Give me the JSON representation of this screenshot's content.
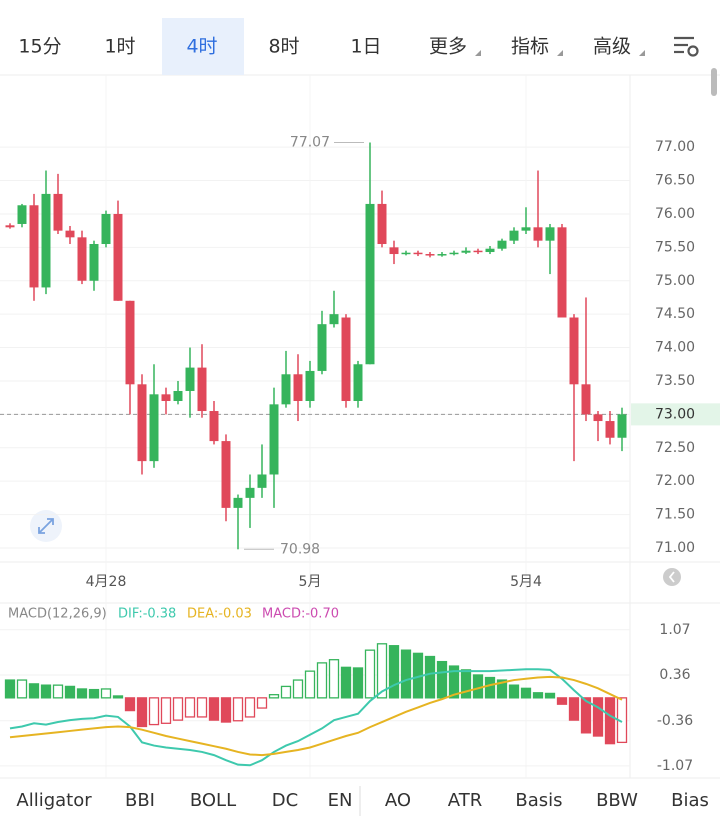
{
  "tabs": [
    "15分",
    "1时",
    "4时",
    "8时",
    "1日",
    "更多",
    "指标",
    "高级"
  ],
  "active_tab": 2,
  "indicator_tabs": [
    "Alligator",
    "BBI",
    "BOLL",
    "DC",
    "EN",
    "AO",
    "ATR",
    "Basis",
    "BBW",
    "Bias"
  ],
  "chart_data": [
    {
      "type": "candlestick",
      "up_color": "#36b45c",
      "down_color": "#e0485a",
      "categories": [
        null,
        null,
        null,
        null,
        null,
        null,
        null,
        null,
        "4月28",
        null,
        null,
        null,
        null,
        null,
        null,
        null,
        null,
        null,
        null,
        null,
        null,
        null,
        null,
        null,
        null,
        "5月",
        null,
        null,
        null,
        null,
        null,
        null,
        null,
        null,
        null,
        null,
        null,
        null,
        null,
        null,
        null,
        null,
        null,
        "5月4",
        null,
        null,
        null,
        null,
        null,
        null,
        null,
        null
      ],
      "open": [
        75.83,
        75.85,
        76.13,
        74.9,
        76.3,
        75.75,
        75.65,
        75.0,
        75.55,
        76.0,
        74.7,
        73.45,
        72.3,
        73.3,
        73.2,
        73.35,
        73.7,
        73.05,
        72.6,
        71.6,
        71.75,
        71.9,
        72.1,
        73.15,
        73.6,
        73.2,
        73.65,
        74.35,
        74.45,
        73.2,
        73.75,
        76.15,
        75.5,
        75.4,
        75.42,
        75.4,
        75.38,
        75.4,
        75.42,
        75.45,
        75.43,
        75.48,
        75.6,
        75.75,
        75.8,
        75.6,
        75.8,
        74.45,
        73.45,
        73.0,
        72.9,
        72.65
      ],
      "high": [
        75.86,
        76.15,
        76.3,
        76.65,
        76.6,
        75.82,
        75.75,
        75.6,
        76.05,
        76.2,
        74.7,
        73.6,
        73.75,
        73.4,
        73.5,
        74.0,
        74.05,
        73.2,
        72.7,
        71.8,
        72.1,
        72.55,
        73.4,
        73.95,
        73.9,
        73.8,
        74.55,
        74.85,
        74.5,
        73.8,
        77.07,
        76.35,
        75.6,
        75.45,
        75.45,
        75.43,
        75.43,
        75.45,
        75.5,
        75.48,
        75.52,
        75.63,
        75.8,
        76.1,
        76.65,
        75.85,
        75.85,
        74.5,
        74.75,
        73.05,
        73.05,
        73.1
      ],
      "low": [
        75.78,
        75.8,
        74.7,
        74.8,
        75.7,
        75.55,
        74.95,
        74.85,
        75.5,
        74.7,
        73.0,
        72.1,
        72.2,
        73.0,
        73.15,
        72.95,
        72.95,
        72.55,
        71.4,
        70.98,
        71.3,
        71.75,
        71.6,
        73.1,
        72.9,
        73.1,
        73.6,
        74.3,
        73.1,
        73.1,
        73.75,
        75.5,
        75.25,
        75.38,
        75.37,
        75.35,
        75.36,
        75.38,
        75.4,
        75.4,
        75.4,
        75.45,
        75.55,
        75.7,
        75.5,
        75.1,
        74.45,
        72.3,
        72.9,
        72.6,
        72.55,
        72.45
      ],
      "close": [
        75.8,
        76.13,
        74.9,
        76.3,
        75.75,
        75.65,
        75.0,
        75.55,
        76.0,
        74.7,
        73.45,
        72.3,
        73.3,
        73.2,
        73.35,
        73.7,
        73.05,
        72.6,
        71.6,
        71.75,
        71.9,
        72.1,
        73.15,
        73.6,
        73.2,
        73.65,
        74.35,
        74.5,
        73.2,
        73.75,
        76.15,
        75.55,
        75.4,
        75.42,
        75.4,
        75.38,
        75.4,
        75.42,
        75.45,
        75.43,
        75.48,
        75.6,
        75.75,
        75.8,
        75.6,
        75.8,
        74.45,
        73.45,
        73.0,
        72.9,
        72.65,
        73.0
      ],
      "ylim": [
        70.79,
        78.08
      ],
      "yticks": [
        {
          "value": 71,
          "label": "71.00"
        },
        {
          "value": 71.5,
          "label": "71.50"
        },
        {
          "value": 72,
          "label": "72.00"
        },
        {
          "value": 72.5,
          "label": "72.50"
        },
        {
          "value": 73,
          "label": "73.00"
        },
        {
          "value": 73.5,
          "label": "73.50"
        },
        {
          "value": 74,
          "label": "74.00"
        },
        {
          "value": 74.5,
          "label": "74.50"
        },
        {
          "value": 75,
          "label": "75.00"
        },
        {
          "value": 75.5,
          "label": "75.50"
        },
        {
          "value": 76,
          "label": "76.00"
        },
        {
          "value": 76.5,
          "label": "76.50"
        },
        {
          "value": 77,
          "label": "77.00"
        }
      ],
      "last_price": {
        "value": 73,
        "label": "73.00"
      },
      "max_label": 77.07,
      "min_label": 70.98,
      "grid": true
    },
    {
      "type": "macd",
      "title": "MACD(12,26,9)",
      "up_color": "#36b45c",
      "down_color": "#e0485a",
      "ylim": [
        -1.26,
        1.46
      ],
      "yticks": [
        1.07,
        0.36,
        -0.36,
        -1.07
      ],
      "series": [
        {
          "name": "DIF:-0.38",
          "type": "line",
          "color": "#3ec9ad",
          "values": [
            -0.48,
            -0.45,
            -0.4,
            -0.42,
            -0.38,
            -0.35,
            -0.33,
            -0.32,
            -0.28,
            -0.3,
            -0.45,
            -0.7,
            -0.75,
            -0.78,
            -0.8,
            -0.82,
            -0.85,
            -0.9,
            -0.98,
            -1.05,
            -1.06,
            -0.98,
            -0.85,
            -0.75,
            -0.68,
            -0.58,
            -0.48,
            -0.35,
            -0.3,
            -0.25,
            -0.05,
            0.1,
            0.2,
            0.28,
            0.33,
            0.38,
            0.4,
            0.42,
            0.42,
            0.42,
            0.42,
            0.43,
            0.44,
            0.45,
            0.45,
            0.44,
            0.3,
            0.12,
            -0.05,
            -0.15,
            -0.28,
            -0.38
          ]
        },
        {
          "name": "DEA:-0.03",
          "type": "line",
          "color": "#e6b422",
          "values": [
            -0.62,
            -0.6,
            -0.58,
            -0.56,
            -0.54,
            -0.52,
            -0.5,
            -0.48,
            -0.46,
            -0.45,
            -0.46,
            -0.5,
            -0.55,
            -0.6,
            -0.64,
            -0.68,
            -0.72,
            -0.76,
            -0.8,
            -0.85,
            -0.89,
            -0.9,
            -0.88,
            -0.85,
            -0.82,
            -0.78,
            -0.72,
            -0.66,
            -0.6,
            -0.55,
            -0.46,
            -0.38,
            -0.3,
            -0.22,
            -0.15,
            -0.08,
            -0.02,
            0.05,
            0.1,
            0.15,
            0.2,
            0.24,
            0.28,
            0.3,
            0.32,
            0.33,
            0.32,
            0.28,
            0.22,
            0.15,
            0.06,
            -0.03
          ]
        },
        {
          "name": "MACD:-0.70",
          "type": "bar",
          "color": "#cc4bb0",
          "values": [
            0.28,
            0.28,
            0.22,
            0.2,
            0.2,
            0.18,
            0.14,
            0.13,
            0.14,
            0.03,
            -0.2,
            -0.45,
            -0.42,
            -0.4,
            -0.35,
            -0.3,
            -0.3,
            -0.35,
            -0.38,
            -0.36,
            -0.3,
            -0.16,
            0.05,
            0.18,
            0.28,
            0.42,
            0.55,
            0.6,
            0.48,
            0.47,
            0.75,
            0.85,
            0.82,
            0.75,
            0.7,
            0.65,
            0.57,
            0.5,
            0.44,
            0.36,
            0.32,
            0.28,
            0.2,
            0.15,
            0.08,
            0.07,
            -0.1,
            -0.35,
            -0.55,
            -0.6,
            -0.72,
            -0.7
          ]
        }
      ]
    }
  ]
}
